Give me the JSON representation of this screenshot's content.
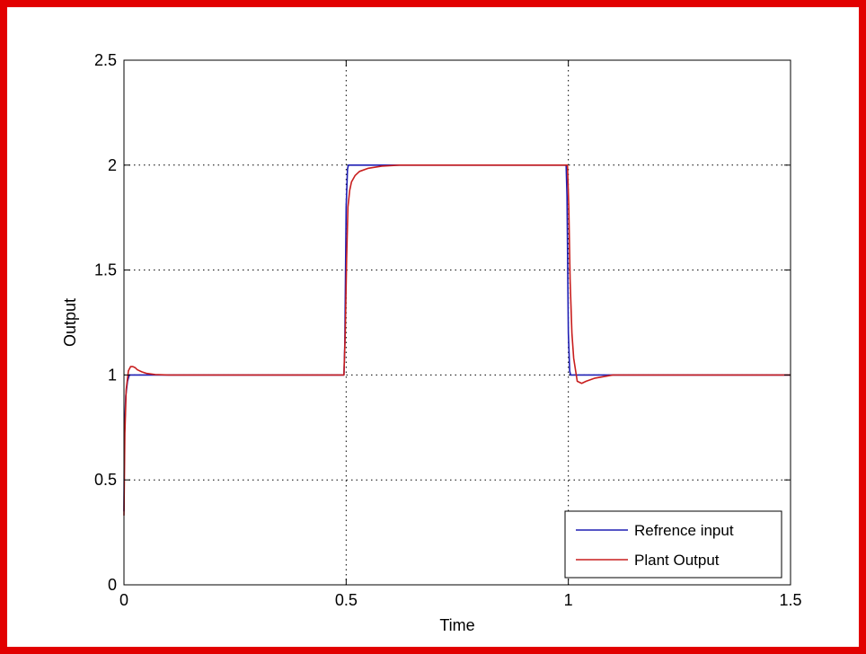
{
  "chart_data": {
    "type": "line",
    "title": "",
    "xlabel": "Time",
    "ylabel": "Output",
    "xlim": [
      0,
      1.5
    ],
    "ylim": [
      0,
      2.5
    ],
    "xticks": [
      0,
      0.5,
      1,
      1.5
    ],
    "xtick_labels": [
      "0",
      "0.5",
      "1",
      "1.5"
    ],
    "yticks": [
      0,
      0.5,
      1,
      1.5,
      2,
      2.5
    ],
    "ytick_labels": [
      "0",
      "0.5",
      "1",
      "1.5",
      "2",
      "2.5"
    ],
    "grid": "dotted",
    "legend_position": "bottom-right",
    "series": [
      {
        "name": "Refrence input",
        "color": "#1f1fb4",
        "x": [
          0,
          0.001,
          0.004,
          0.008,
          0.012,
          0.02,
          0.04,
          0.08,
          0.12,
          0.2,
          0.3,
          0.4,
          0.495,
          0.497,
          0.5,
          0.503,
          0.505,
          0.52,
          0.55,
          0.6,
          0.7,
          0.8,
          0.9,
          0.995,
          0.997,
          1.0,
          1.003,
          1.005,
          1.02,
          1.05,
          1.08,
          1.2,
          1.35,
          1.5
        ],
        "y": [
          0.35,
          0.7,
          0.9,
          0.97,
          1.0,
          1.0,
          1.0,
          1.0,
          1.0,
          1.0,
          1.0,
          1.0,
          1.0,
          1.15,
          1.8,
          1.98,
          2.0,
          2.0,
          2.0,
          2.0,
          2.0,
          2.0,
          2.0,
          2.0,
          1.85,
          1.2,
          1.02,
          1.0,
          1.0,
          1.0,
          1.0,
          1.0,
          1.0,
          1.0
        ]
      },
      {
        "name": "Plant Output",
        "color": "#c81e1e",
        "x": [
          0,
          0.002,
          0.005,
          0.01,
          0.015,
          0.02,
          0.025,
          0.03,
          0.04,
          0.05,
          0.07,
          0.1,
          0.13,
          0.2,
          0.3,
          0.4,
          0.495,
          0.498,
          0.501,
          0.504,
          0.508,
          0.512,
          0.52,
          0.53,
          0.55,
          0.58,
          0.62,
          0.7,
          0.8,
          0.9,
          0.998,
          1.001,
          1.004,
          1.008,
          1.012,
          1.02,
          1.03,
          1.04,
          1.06,
          1.1,
          1.2,
          1.35,
          1.5
        ],
        "y": [
          0.33,
          0.72,
          0.93,
          1.02,
          1.04,
          1.04,
          1.035,
          1.025,
          1.015,
          1.008,
          1.002,
          1.0,
          1.0,
          1.0,
          1.0,
          1.0,
          1.0,
          1.2,
          1.55,
          1.8,
          1.88,
          1.92,
          1.95,
          1.97,
          1.985,
          1.995,
          2.0,
          2.0,
          2.0,
          2.0,
          2.0,
          1.8,
          1.45,
          1.2,
          1.08,
          0.97,
          0.96,
          0.97,
          0.985,
          1.0,
          1.0,
          1.0,
          1.0
        ]
      }
    ]
  }
}
